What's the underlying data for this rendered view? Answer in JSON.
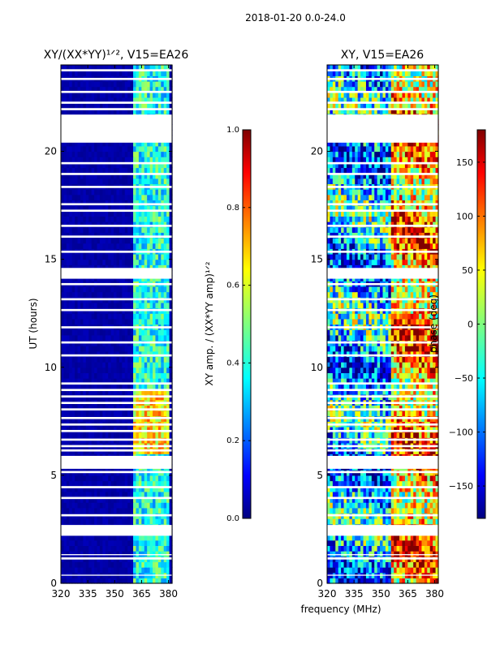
{
  "chart_data": {
    "suptitle": "2018-01-20 0.0-24.0",
    "shared_xlabel": "frequency (MHz)",
    "panels": [
      {
        "id": "amp",
        "type": "heatmap",
        "title": "XY/(XX*YY)¹ᐟ², V15=EA26",
        "ylabel": "UT (hours)",
        "xlim": [
          320,
          382
        ],
        "ylim": [
          0,
          24
        ],
        "xticks": [
          320,
          335,
          350,
          365,
          380
        ],
        "yticks": [
          0,
          5,
          10,
          15,
          20
        ],
        "colormap": "jet",
        "colorbar": {
          "label": "XY amp. / (XX*YY amp)¹ᐟ²",
          "range": [
            0.0,
            1.0
          ],
          "ticks": [
            "0.0",
            "0.2",
            "0.4",
            "0.6",
            "0.8",
            "1.0"
          ]
        },
        "gaps_hours": [
          [
            0.35,
            0.4
          ],
          [
            1.1,
            1.2
          ],
          [
            1.3,
            1.35
          ],
          [
            2.2,
            2.7
          ],
          [
            3.1,
            3.2
          ],
          [
            3.9,
            4.0
          ],
          [
            4.4,
            4.5
          ],
          [
            5.1,
            5.2
          ],
          [
            5.3,
            5.9
          ],
          [
            6.1,
            6.2
          ],
          [
            6.3,
            6.4
          ],
          [
            6.6,
            6.7
          ],
          [
            7.0,
            7.1
          ],
          [
            7.3,
            7.4
          ],
          [
            7.6,
            7.7
          ],
          [
            8.0,
            8.1
          ],
          [
            8.3,
            8.4
          ],
          [
            8.6,
            8.7
          ],
          [
            8.9,
            9.0
          ],
          [
            9.2,
            9.3
          ],
          [
            10.5,
            10.6
          ],
          [
            11.1,
            11.2
          ],
          [
            11.8,
            11.9
          ],
          [
            12.6,
            12.7
          ],
          [
            13.1,
            13.2
          ],
          [
            13.8,
            13.9
          ],
          [
            14.1,
            14.6
          ],
          [
            15.3,
            15.4
          ],
          [
            16.0,
            16.1
          ],
          [
            16.5,
            16.6
          ],
          [
            17.2,
            17.3
          ],
          [
            17.5,
            17.6
          ],
          [
            18.3,
            18.4
          ],
          [
            18.9,
            19.0
          ],
          [
            19.4,
            19.5
          ],
          [
            20.4,
            21.7
          ],
          [
            21.9,
            22.0
          ],
          [
            22.2,
            22.3
          ],
          [
            22.7,
            22.8
          ],
          [
            23.3,
            23.4
          ],
          [
            23.7,
            23.8
          ]
        ],
        "bright_band_mhz": [
          361,
          381
        ]
      },
      {
        "id": "phase",
        "type": "heatmap",
        "title": "XY, V15=EA26",
        "xlim": [
          320,
          382
        ],
        "ylim": [
          0,
          24
        ],
        "xticks": [
          320,
          335,
          350,
          365,
          380
        ],
        "yticks": [
          0,
          5,
          10,
          15,
          20
        ],
        "colormap": "jet",
        "colorbar": {
          "label": "phase (deg)",
          "range": [
            -180,
            180
          ],
          "ticks": [
            "−150",
            "−100",
            "−50",
            "0",
            "50",
            "100",
            "150"
          ],
          "tick_values": [
            -150,
            -100,
            -50,
            0,
            50,
            100,
            150
          ]
        },
        "gaps_hours": [
          [
            0.35,
            0.4
          ],
          [
            1.1,
            1.2
          ],
          [
            1.3,
            1.35
          ],
          [
            2.2,
            2.7
          ],
          [
            3.1,
            3.2
          ],
          [
            3.9,
            4.0
          ],
          [
            4.4,
            4.5
          ],
          [
            5.1,
            5.2
          ],
          [
            5.3,
            5.9
          ],
          [
            6.1,
            6.2
          ],
          [
            6.3,
            6.4
          ],
          [
            6.6,
            6.7
          ],
          [
            7.0,
            7.1
          ],
          [
            7.3,
            7.4
          ],
          [
            7.6,
            7.7
          ],
          [
            8.0,
            8.1
          ],
          [
            8.3,
            8.4
          ],
          [
            8.6,
            8.7
          ],
          [
            8.9,
            9.0
          ],
          [
            9.2,
            9.3
          ],
          [
            10.5,
            10.6
          ],
          [
            11.1,
            11.2
          ],
          [
            11.8,
            11.9
          ],
          [
            12.6,
            12.7
          ],
          [
            13.1,
            13.2
          ],
          [
            13.8,
            13.9
          ],
          [
            14.1,
            14.6
          ],
          [
            15.3,
            15.4
          ],
          [
            16.0,
            16.1
          ],
          [
            16.5,
            16.6
          ],
          [
            17.2,
            17.3
          ],
          [
            17.5,
            17.6
          ],
          [
            18.3,
            18.4
          ],
          [
            18.9,
            19.0
          ],
          [
            19.4,
            19.5
          ],
          [
            20.4,
            21.7
          ],
          [
            21.9,
            22.0
          ],
          [
            22.2,
            22.3
          ],
          [
            22.7,
            22.8
          ],
          [
            23.3,
            23.4
          ],
          [
            23.7,
            23.8
          ]
        ]
      }
    ]
  }
}
